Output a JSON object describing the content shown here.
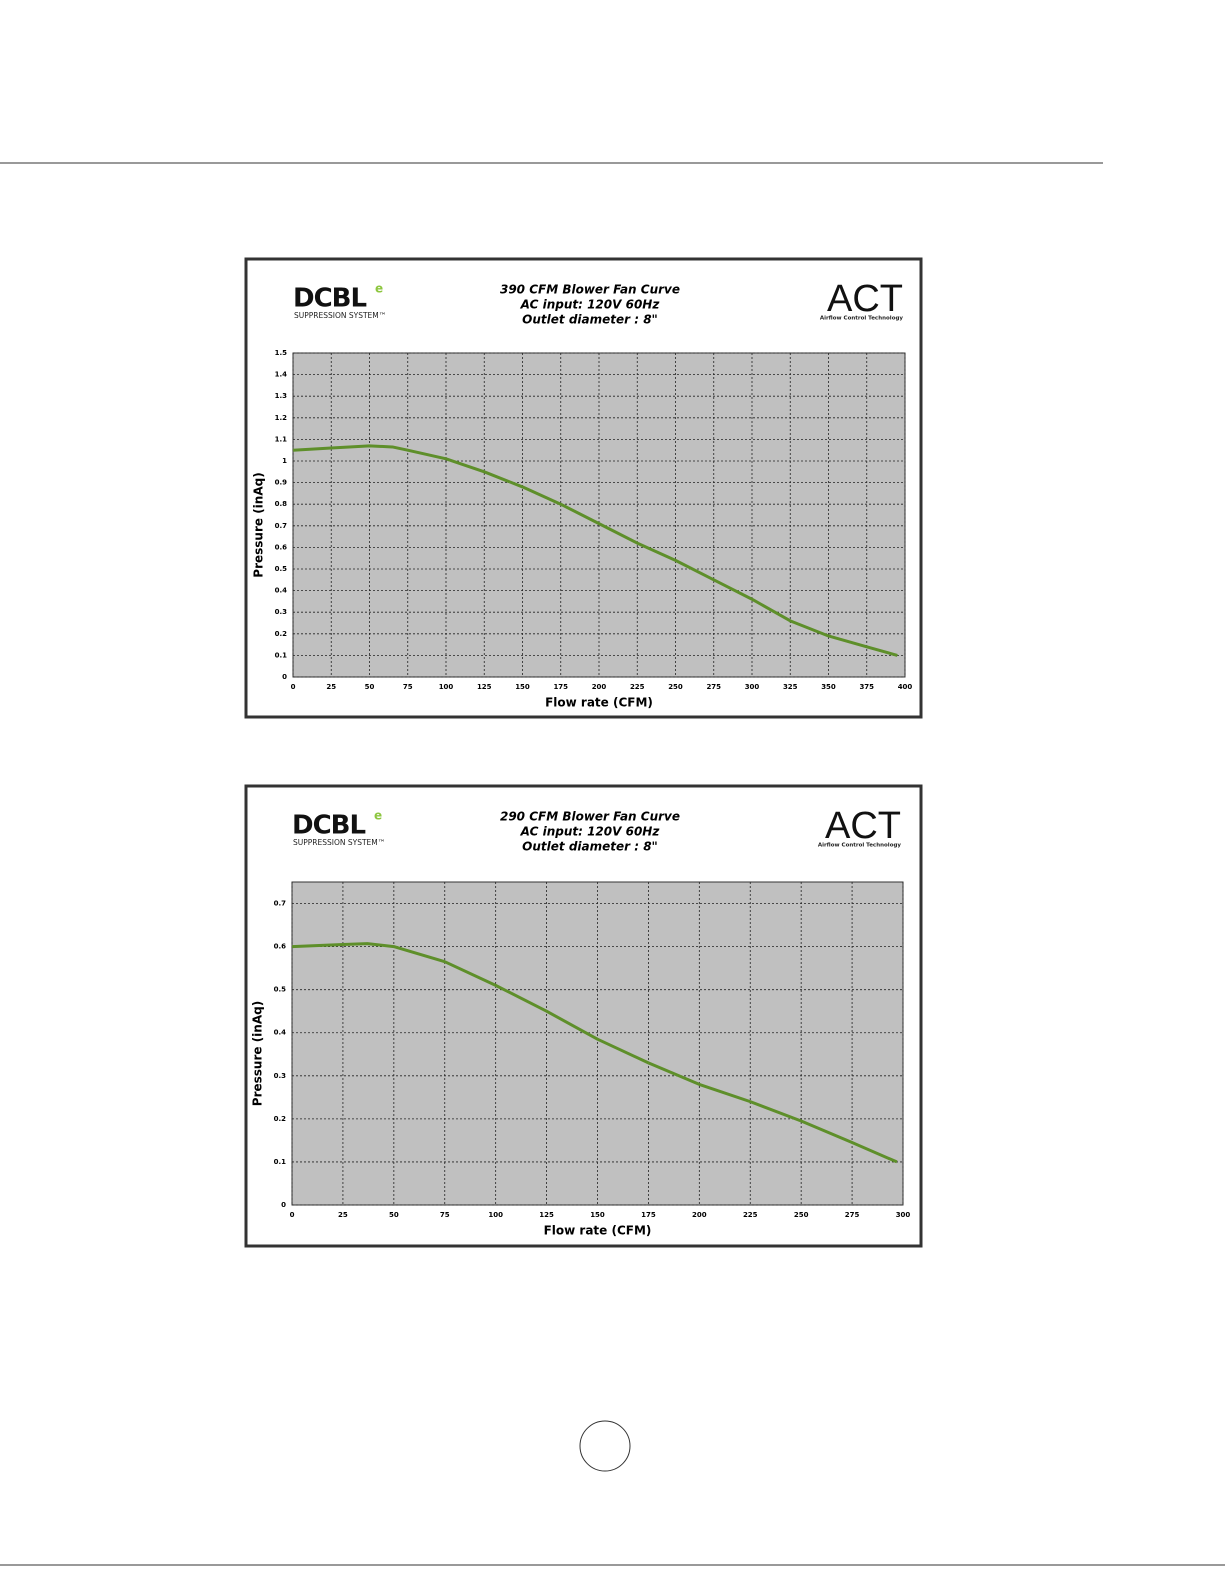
{
  "chart_data": [
    {
      "type": "line",
      "title": "390 CFM Blower Fan Curve",
      "subtitles": [
        "AC input: 120V  60Hz",
        "Outlet diameter : 8\""
      ],
      "logos": {
        "left_name": "DCBL",
        "left_mark": "e",
        "left_tagline": "SUPPRESSION SYSTEM™",
        "right_name": "ACT",
        "right_tagline": "Airflow Control Technology"
      },
      "x_label": "Flow rate (CFM)",
      "y_label": "Pressure (inAq)",
      "xlim": [
        0,
        400
      ],
      "xticks": [
        0,
        25,
        50,
        75,
        100,
        125,
        150,
        175,
        200,
        225,
        250,
        275,
        300,
        325,
        350,
        375,
        400
      ],
      "ylim": [
        0,
        1.5
      ],
      "yticks": [
        0,
        0.1,
        0.2,
        0.3,
        0.4,
        0.5,
        0.6,
        0.7,
        0.8,
        0.9,
        1,
        1.1,
        1.2,
        1.3,
        1.4,
        1.5
      ],
      "grid": true,
      "x": [
        0,
        25,
        50,
        65,
        75,
        100,
        125,
        150,
        175,
        200,
        225,
        250,
        275,
        300,
        325,
        350,
        375,
        395
      ],
      "series": [
        {
          "color": "#5e8f2a",
          "values": [
            1.05,
            1.06,
            1.07,
            1.065,
            1.05,
            1.01,
            0.95,
            0.88,
            0.8,
            0.71,
            0.62,
            0.54,
            0.45,
            0.36,
            0.26,
            0.19,
            0.14,
            0.1
          ]
        }
      ]
    },
    {
      "type": "line",
      "title": "290 CFM Blower Fan Curve",
      "subtitles": [
        "AC input: 120V  60Hz",
        "Outlet diameter : 8\""
      ],
      "logos": {
        "left_name": "DCBL",
        "left_mark": "e",
        "left_tagline": "SUPPRESSION SYSTEM™",
        "right_name": "ACT",
        "right_tagline": "Airflow Control Technology"
      },
      "x_label": "Flow rate (CFM)",
      "y_label": "Pressure (inAq)",
      "xlim": [
        0,
        300
      ],
      "xticks": [
        0,
        25,
        50,
        75,
        100,
        125,
        150,
        175,
        200,
        225,
        250,
        275,
        300
      ],
      "ylim": [
        0,
        0.75
      ],
      "yticks": [
        0,
        0.1,
        0.2,
        0.3,
        0.4,
        0.5,
        0.6,
        0.7
      ],
      "grid": true,
      "x": [
        0,
        25,
        37,
        50,
        75,
        100,
        125,
        150,
        175,
        200,
        225,
        250,
        275,
        297
      ],
      "series": [
        {
          "color": "#5e8f2a",
          "values": [
            0.6,
            0.605,
            0.607,
            0.6,
            0.565,
            0.51,
            0.45,
            0.385,
            0.33,
            0.28,
            0.24,
            0.195,
            0.145,
            0.1
          ]
        }
      ]
    }
  ]
}
